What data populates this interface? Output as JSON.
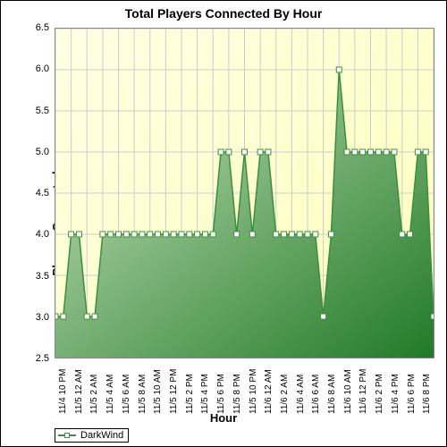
{
  "chart": {
    "type": "area",
    "title": "Total Players Connected By Hour",
    "xlabel": "Hour",
    "ylabel": "Players Connected",
    "title_fontsize": 14,
    "label_fontsize": 13,
    "tick_fontsize": 11,
    "background_gradient": {
      "from": "#ffffe5",
      "to": "#feffb7"
    },
    "grid_color": "#cccccc",
    "plot_border_color": "#8a8a8a",
    "series": {
      "name": "DarkWind",
      "line_color": "#3b8f3b",
      "marker_border": "#3b8f3b",
      "marker_fill": "#ffffff",
      "marker_size": 6,
      "area_gradient": {
        "from": "#cce5c0",
        "to": "#217a27"
      },
      "categories": [
        "11/4 10 PM",
        "11/5 12 AM",
        "11/5 2 AM",
        "11/5 4 AM",
        "11/5 6 AM",
        "11/5 8 AM",
        "11/5 10 AM",
        "11/5 12 PM",
        "11/5 2 PM",
        "11/5 4 PM",
        "11/5 6 PM",
        "11/5 8 PM",
        "11/5 10 PM",
        "11/6 12 AM",
        "11/6 2 AM",
        "11/6 4 AM",
        "11/6 6 AM",
        "11/6 8 AM",
        "11/6 10 AM",
        "11/6 12 PM",
        "11/6 2 PM",
        "11/6 4 PM",
        "11/6 6 PM",
        "11/6 8 PM"
      ],
      "values": [
        3,
        3,
        4,
        4,
        3,
        3,
        4,
        4,
        4,
        4,
        4,
        4,
        4,
        4,
        4,
        4,
        4,
        4,
        4,
        4,
        4,
        5,
        5,
        4,
        5,
        4,
        5,
        5,
        4,
        4,
        4,
        4,
        4,
        4,
        3,
        4,
        6,
        5,
        5,
        5,
        5,
        5,
        5,
        5,
        4,
        4,
        5,
        5,
        3
      ]
    },
    "ylim": [
      2.5,
      6.5
    ],
    "ytick_step": 0.5,
    "x_major_tick_interval": 2
  }
}
